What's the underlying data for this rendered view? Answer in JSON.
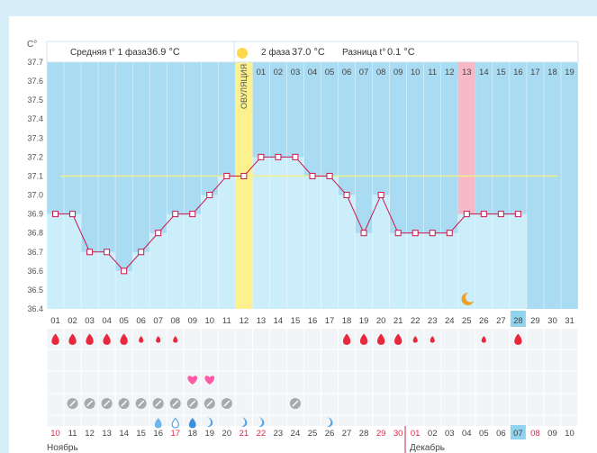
{
  "header": {
    "unit_label": "C°",
    "phase1_label": "Средняя t° 1 фаза",
    "phase1_value": "36.9 °C",
    "phase2_label": "2 фаза",
    "phase2_value": "37.0 °C",
    "diff_label": "Разница t°",
    "diff_value": "0.1 °C",
    "ovulation_label": "ОВУЛЯЦИЯ"
  },
  "colors": {
    "chart_bg": "#a9dbf2",
    "bar_fill": "#cceefb",
    "line": "#c9184a",
    "ovulation": "#fdf08f",
    "highlight_pink": "#f7b8c8",
    "coverline": "#f0ef8a",
    "blood": "#e8283c",
    "sun": "#ffd84a",
    "heart": "#ff5aa5",
    "today_box": "#8fd3ee"
  },
  "chart_data": {
    "type": "line",
    "xlabel": "",
    "ylabel": "C°",
    "ylim": [
      36.4,
      37.7
    ],
    "y_ticks": [
      "36.4",
      "36.5",
      "36.6",
      "36.7",
      "36.8",
      "36.9",
      "37.0",
      "37.1",
      "37.2",
      "37.3",
      "37.4",
      "37.5",
      "37.6",
      "37.7"
    ],
    "cycle_days": [
      "01",
      "02",
      "03",
      "04",
      "05",
      "06",
      "07",
      "08",
      "09",
      "10",
      "11",
      "12",
      "13",
      "14",
      "15",
      "16",
      "17",
      "18",
      "19",
      "20",
      "21",
      "22",
      "23",
      "24",
      "25",
      "26",
      "27",
      "28",
      "29",
      "30",
      "31"
    ],
    "values": [
      36.9,
      36.9,
      36.7,
      36.7,
      36.6,
      36.7,
      36.8,
      36.9,
      36.9,
      37.0,
      37.1,
      37.1,
      37.2,
      37.2,
      37.2,
      37.1,
      37.1,
      37.0,
      36.8,
      37.0,
      36.8,
      36.8,
      36.8,
      36.8,
      36.9,
      36.9,
      36.9,
      36.9
    ],
    "coverline": 37.1,
    "ovulation_day": "12",
    "phase2_days": [
      "01",
      "02",
      "03",
      "04",
      "05",
      "06",
      "07",
      "08",
      "09",
      "10",
      "11",
      "12",
      "13",
      "14",
      "15",
      "16",
      "17",
      "18",
      "19"
    ],
    "phase2_highlight": "13",
    "today_day": "28",
    "moon_day": "25",
    "blood_drops": {
      "01": "large",
      "02": "large",
      "03": "large",
      "04": "large",
      "05": "large",
      "06": "small",
      "07": "small",
      "08": "small",
      "18": "large",
      "19": "large",
      "20": "large",
      "21": "large",
      "22": "small",
      "23": "small",
      "26": "small",
      "28": "large"
    },
    "hearts": [
      "09",
      "10"
    ],
    "pills": [
      "02",
      "03",
      "04",
      "05",
      "06",
      "07",
      "08",
      "09",
      "10",
      "11",
      "15"
    ],
    "water_drops": {
      "07": "filled",
      "08": "outline",
      "09": "blue",
      "10": "wave",
      "12": "wave",
      "13": "wave",
      "17": "wave"
    }
  },
  "calendar": {
    "dates": [
      "10",
      "11",
      "12",
      "13",
      "14",
      "15",
      "16",
      "17",
      "18",
      "19",
      "20",
      "21",
      "22",
      "23",
      "24",
      "25",
      "26",
      "27",
      "28",
      "29",
      "30",
      "01",
      "02",
      "03",
      "04",
      "05",
      "06",
      "07",
      "08",
      "09",
      "10"
    ],
    "red_dates_index": [
      0,
      7,
      11,
      12,
      19,
      20,
      21,
      28
    ],
    "today_index": 27,
    "month_left": "Ноябрь",
    "month_right": "Декабрь"
  }
}
